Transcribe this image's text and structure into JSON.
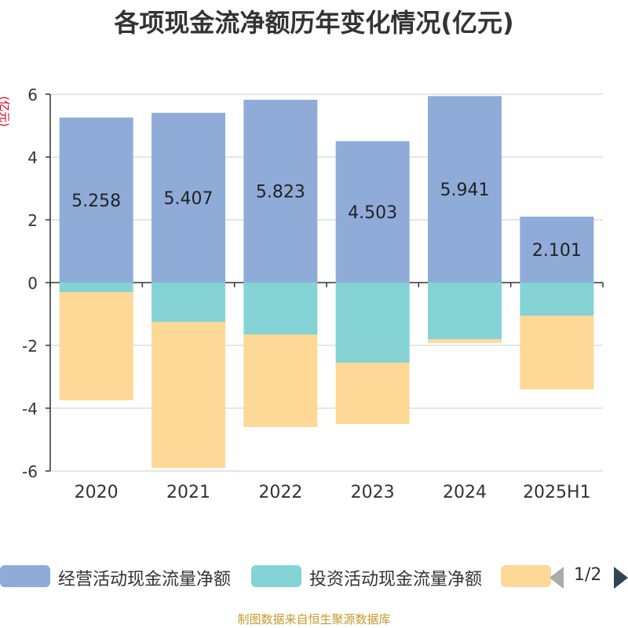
{
  "title": "各项现金流净额历年变化情况(亿元)",
  "unit_label": "(亿元)",
  "footer": "制图数据来自恒生聚源数据库",
  "legend": {
    "items": [
      {
        "label": "经营活动现金流量净额",
        "color": "#8facd9"
      },
      {
        "label": "投资活动现金流量净额",
        "color": "#85d3d5"
      },
      {
        "label": "",
        "color": "#fed897"
      }
    ],
    "page_text": "1/2"
  },
  "chart_data": {
    "type": "bar",
    "stacked": true,
    "categories": [
      "2020",
      "2021",
      "2022",
      "2023",
      "2024",
      "2025H1"
    ],
    "ylim": [
      -6,
      6
    ],
    "yticks": [
      6,
      4,
      2,
      0,
      -2,
      -4,
      -6
    ],
    "grid": true,
    "legend_position": "bottom",
    "series": [
      {
        "name": "经营活动现金流量净额",
        "color": "#8facd9",
        "values": [
          5.258,
          5.407,
          5.823,
          4.503,
          5.941,
          2.101
        ],
        "show_labels": true
      },
      {
        "name": "投资活动现金流量净额",
        "color": "#85d3d5",
        "values": [
          -0.3,
          -1.25,
          -1.65,
          -2.55,
          -1.8,
          -1.05
        ],
        "show_labels": false
      },
      {
        "name": "",
        "color": "#fed897",
        "values": [
          -3.45,
          -4.65,
          -2.95,
          -1.95,
          -0.12,
          -2.35
        ],
        "show_labels": false
      }
    ]
  }
}
